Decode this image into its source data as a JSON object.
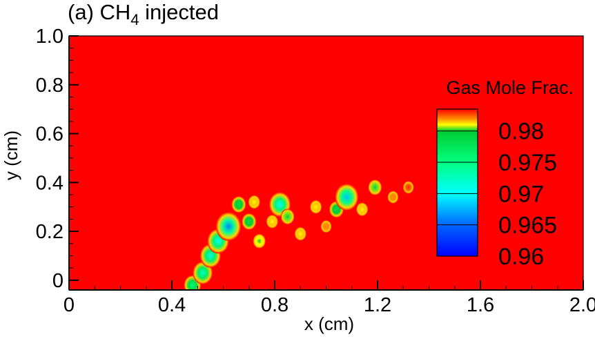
{
  "chart_data": {
    "type": "heatmap",
    "title": "(a) CH",
    "title_subscript": "4",
    "title_suffix": " injected",
    "xlabel": "x (cm)",
    "ylabel": "y (cm)",
    "xlim": [
      0,
      2.0
    ],
    "ylim": [
      -0.04,
      1.0
    ],
    "x_ticks": [
      0,
      0.4,
      0.8,
      1.2,
      1.6,
      2.0
    ],
    "x_tick_labels": [
      "0",
      "0.4",
      "0.8",
      "1.2",
      "1.6",
      "2.0"
    ],
    "y_ticks": [
      0,
      0.2,
      0.4,
      0.6,
      0.8,
      1.0
    ],
    "y_tick_labels": [
      "0",
      "0.2",
      "0.4",
      "0.6",
      "0.8",
      "1.0"
    ],
    "background_value": 0.982,
    "background_color": "#ff0000",
    "colorbar": {
      "title": "Gas Mole Frac.",
      "min": 0.96,
      "max": 0.9835,
      "tick_values": [
        0.98,
        0.975,
        0.97,
        0.965,
        0.96
      ],
      "tick_labels": [
        "0.98",
        "0.975",
        "0.97",
        "0.965",
        "0.96"
      ],
      "colors": [
        {
          "value": 0.96,
          "color": "#0000ff"
        },
        {
          "value": 0.965,
          "color": "#0066ff"
        },
        {
          "value": 0.97,
          "color": "#00ffff"
        },
        {
          "value": 0.975,
          "color": "#00ff80"
        },
        {
          "value": 0.98,
          "color": "#00cc33"
        },
        {
          "value": 0.981,
          "color": "#ffff00"
        },
        {
          "value": 0.982,
          "color": "#ff8800"
        },
        {
          "value": 0.9835,
          "color": "#ff0000"
        }
      ]
    },
    "blobs": [
      {
        "x": 0.48,
        "y": -0.02,
        "value": 0.975
      },
      {
        "x": 0.52,
        "y": 0.03,
        "value": 0.972
      },
      {
        "x": 0.55,
        "y": 0.1,
        "value": 0.971
      },
      {
        "x": 0.58,
        "y": 0.16,
        "value": 0.97
      },
      {
        "x": 0.62,
        "y": 0.22,
        "value": 0.966
      },
      {
        "x": 0.66,
        "y": 0.31,
        "value": 0.978
      },
      {
        "x": 0.7,
        "y": 0.24,
        "value": 0.978
      },
      {
        "x": 0.72,
        "y": 0.32,
        "value": 0.981
      },
      {
        "x": 0.74,
        "y": 0.16,
        "value": 0.98
      },
      {
        "x": 0.79,
        "y": 0.24,
        "value": 0.981
      },
      {
        "x": 0.82,
        "y": 0.31,
        "value": 0.97
      },
      {
        "x": 0.85,
        "y": 0.26,
        "value": 0.979
      },
      {
        "x": 0.9,
        "y": 0.19,
        "value": 0.981
      },
      {
        "x": 0.96,
        "y": 0.3,
        "value": 0.981
      },
      {
        "x": 1.0,
        "y": 0.22,
        "value": 0.982
      },
      {
        "x": 1.04,
        "y": 0.29,
        "value": 0.978
      },
      {
        "x": 1.08,
        "y": 0.34,
        "value": 0.968
      },
      {
        "x": 1.14,
        "y": 0.29,
        "value": 0.981
      },
      {
        "x": 1.19,
        "y": 0.38,
        "value": 0.979
      },
      {
        "x": 1.26,
        "y": 0.34,
        "value": 0.982
      },
      {
        "x": 1.32,
        "y": 0.38,
        "value": 0.983
      }
    ]
  }
}
